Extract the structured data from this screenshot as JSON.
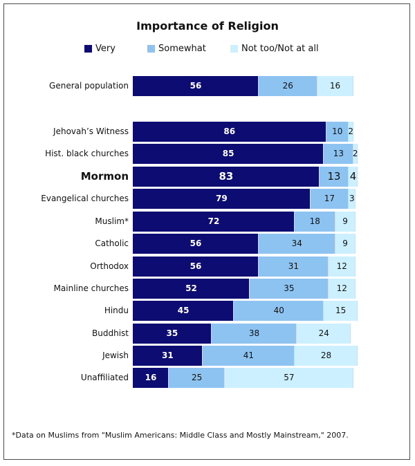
{
  "chart_data": {
    "type": "bar",
    "orientation": "horizontal",
    "stacked": true,
    "title": "Importance of Religion",
    "legend_position": "top",
    "series": [
      {
        "name": "Very",
        "color": "#0c0c73",
        "values": [
          56,
          86,
          85,
          83,
          79,
          72,
          56,
          56,
          52,
          45,
          35,
          31,
          16
        ]
      },
      {
        "name": "Somewhat",
        "color": "#8dc3f0",
        "values": [
          26,
          10,
          13,
          13,
          17,
          18,
          34,
          31,
          35,
          40,
          38,
          41,
          25
        ]
      },
      {
        "name": "Not too/Not at all",
        "color": "#ccf0ff",
        "values": [
          16,
          2,
          2,
          4,
          3,
          9,
          9,
          12,
          12,
          15,
          24,
          28,
          57
        ]
      }
    ],
    "categories": [
      "General population",
      "Jehovah’s Witness",
      "Hist. black churches",
      "Mormon",
      "Evangelical churches",
      "Muslim*",
      "Catholic",
      "Orthodox",
      "Mainline churches",
      "Hindu",
      "Buddhist",
      "Jewish",
      "Unaffiliated"
    ],
    "highlighted_category": "Mormon",
    "xlim": [
      0,
      100
    ],
    "grid": false
  },
  "footnote": "*Data on Muslims from \"Muslim Americans: Middle Class and Mostly Mainstream,\" 2007."
}
